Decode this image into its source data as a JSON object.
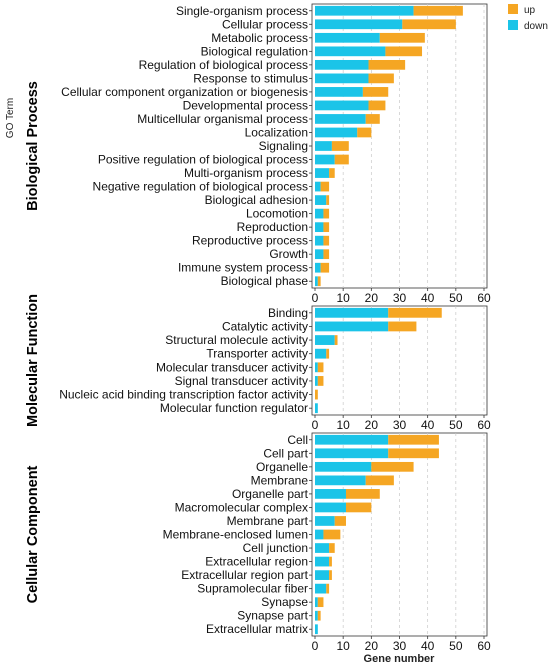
{
  "chart_data": {
    "type": "bar",
    "stacked": true,
    "orientation": "horizontal",
    "y_axis_title": "GO Term",
    "xlabel": "Gene number",
    "xlim": [
      0,
      60
    ],
    "xticks": [
      0,
      10,
      20,
      30,
      40,
      50,
      60
    ],
    "grid": "vertical dashed",
    "legend": {
      "position": "top-right",
      "entries": [
        {
          "name": "up",
          "color": "#F5A623"
        },
        {
          "name": "down",
          "color": "#1BC4E8"
        }
      ]
    },
    "series_colors": {
      "down": "#1BC4E8",
      "up": "#F5A623"
    },
    "panels": [
      {
        "name": "Biological Process",
        "categories": [
          "Single-organism process",
          "Cellular process",
          "Metabolic process",
          "Biological regulation",
          "Regulation of biological process",
          "Response to stimulus",
          "Cellular component organization or biogenesis",
          "Developmental process",
          "Multicellular organismal process",
          "Localization",
          "Signaling",
          "Positive regulation of biological process",
          "Multi-organism process",
          "Negative regulation of biological process",
          "Biological adhesion",
          "Locomotion",
          "Reproduction",
          "Reproductive process",
          "Growth",
          "Immune system process",
          "Biological phase"
        ],
        "series": [
          {
            "name": "down",
            "values": [
              35,
              31,
              23,
              25,
              19,
              19,
              17,
              19,
              18,
              15,
              6,
              7,
              5,
              2,
              4,
              3,
              3,
              3,
              3,
              2,
              1
            ]
          },
          {
            "name": "up",
            "values": [
              17.5,
              19,
              16,
              13,
              13,
              9,
              9,
              6,
              5,
              5,
              6,
              5,
              2,
              3,
              1,
              2,
              2,
              2,
              2,
              3,
              1
            ]
          }
        ]
      },
      {
        "name": "Molecular Function",
        "categories": [
          "Binding",
          "Catalytic activity",
          "Structural molecule activity",
          "Transporter activity",
          "Molecular transducer activity",
          "Signal transducer activity",
          "Nucleic acid binding transcription factor activity",
          "Molecular function regulator"
        ],
        "series": [
          {
            "name": "down",
            "values": [
              26,
              26,
              7,
              4,
              1,
              1,
              0,
              1
            ]
          },
          {
            "name": "up",
            "values": [
              19,
              10,
              1,
              1,
              2,
              2,
              1,
              0
            ]
          }
        ]
      },
      {
        "name": "Cellular Component",
        "categories": [
          "Cell",
          "Cell part",
          "Organelle",
          "Membrane",
          "Organelle part",
          "Macromolecular complex",
          "Membrane part",
          "Membrane-enclosed lumen",
          "Cell junction",
          "Extracellular region",
          "Extracellular region part",
          "Supramolecular fiber",
          "Synapse",
          "Synapse part",
          "Extracellular matrix"
        ],
        "series": [
          {
            "name": "down",
            "values": [
              26,
              26,
              20,
              18,
              11,
              11,
              7,
              3,
              5,
              5,
              5,
              4,
              1,
              1,
              1
            ]
          },
          {
            "name": "up",
            "values": [
              18,
              18,
              15,
              10,
              12,
              9,
              4,
              6,
              2,
              1,
              1,
              1,
              2,
              1,
              0
            ]
          }
        ]
      }
    ]
  }
}
